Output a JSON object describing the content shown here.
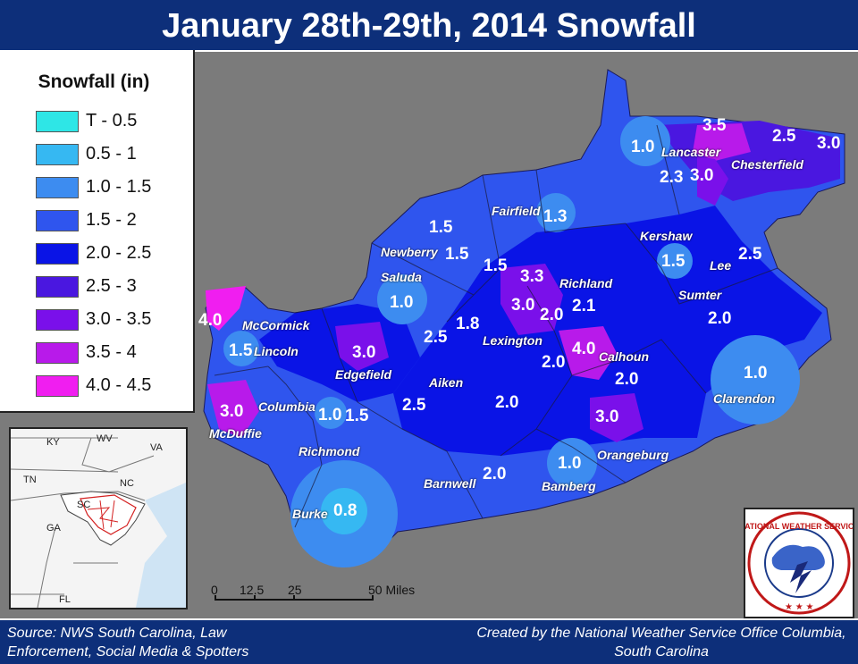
{
  "title": "January 28th-29th, 2014 Snowfall",
  "legend": {
    "title": "Snowfall (in)",
    "items": [
      {
        "label": "T - 0.5",
        "color": "#2ee6e6"
      },
      {
        "label": "0.5 - 1",
        "color": "#36b8f2"
      },
      {
        "label": "1.0 - 1.5",
        "color": "#3d8cf0"
      },
      {
        "label": "1.5 - 2",
        "color": "#2f55ee"
      },
      {
        "label": "2.0 - 2.5",
        "color": "#0a14e6"
      },
      {
        "label": "2.5 - 3",
        "color": "#4a17e0"
      },
      {
        "label": "3.0 - 3.5",
        "color": "#7a10ea"
      },
      {
        "label": "3.5 - 4",
        "color": "#b81aea"
      },
      {
        "label": "4.0 - 4.5",
        "color": "#f01ef0"
      }
    ]
  },
  "inset": {
    "labels": [
      "KY",
      "WV",
      "VA",
      "TN",
      "NC",
      "SC",
      "GA",
      "FL"
    ]
  },
  "counties": [
    "Lancaster",
    "Chesterfield",
    "Fairfield",
    "Kershaw",
    "Lee",
    "Newberry",
    "Richland",
    "Saluda",
    "Sumter",
    "McCormick",
    "Lincoln",
    "Lexington",
    "Calhoun",
    "Edgefield",
    "Aiken",
    "Clarendon",
    "Columbia",
    "McDuffie",
    "Orangeburg",
    "Richmond",
    "Barnwell",
    "Bamberg",
    "Burke"
  ],
  "values": [
    "3.5",
    "2.5",
    "3.0",
    "1.0",
    "2.3",
    "3.0",
    "1.3",
    "1.5",
    "1.5",
    "2.5",
    "1.5",
    "1.5",
    "3.3",
    "1.0",
    "3.0",
    "2.0",
    "2.1",
    "2.0",
    "4.0",
    "1.8",
    "2.5",
    "1.5",
    "3.0",
    "4.0",
    "2.0",
    "2.0",
    "1.0",
    "2.5",
    "2.0",
    "3.0",
    "1.0",
    "1.5",
    "3.0",
    "2.0",
    "1.0",
    "0.8"
  ],
  "scale": {
    "ticks": [
      "0",
      "12.5",
      "25",
      "50 Miles"
    ]
  },
  "logo_text": "NATIONAL WEATHER SERVICE",
  "footer": {
    "source": "Source: NWS South Carolina, Law Enforcement, Social Media & Spotters",
    "credit": "Created by the National Weather Service Office Columbia, South Carolina"
  }
}
